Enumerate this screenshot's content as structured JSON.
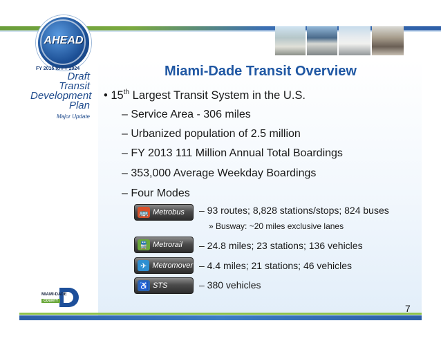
{
  "header": {
    "logo_text": "AHEAD",
    "plan_years": "FY 2015 to FY 2024",
    "plan_title_lines": [
      "Draft",
      "Transit",
      "Development",
      "Plan"
    ],
    "plan_subtitle": "Major Update"
  },
  "slide": {
    "title": "Miami-Dade Transit Overview",
    "bullet_main_prefix": "15",
    "bullet_main_sup": "th",
    "bullet_main_suffix": " Largest Transit System in the U.S.",
    "sub_items": [
      "– Service Area - 306 miles",
      "– Urbanized population of 2.5 million",
      "– FY 2013 111 Million Annual Total Boardings",
      "– 353,000 Average Weekday Boardings",
      "– Four Modes"
    ],
    "modes": [
      {
        "label": "Metrobus",
        "color": "#d9502a",
        "icon": "bus-icon",
        "glyph": "🚌",
        "detail": "– 93 routes; 8,828 stations/stops; 824 buses",
        "note": "» Busway: ~20 miles exclusive lanes"
      },
      {
        "label": "Metrorail",
        "color": "#6aa83a",
        "icon": "train-icon",
        "glyph": "🚆",
        "detail": "– 24.8 miles; 23 stations; 136 vehicles"
      },
      {
        "label": "Metromover",
        "color": "#2e8fd1",
        "icon": "mover-icon",
        "glyph": "✈",
        "detail": "– 4.4 miles; 21 stations; 46 vehicles"
      },
      {
        "label": "STS",
        "color": "#2a63b2",
        "icon": "accessibility-icon",
        "glyph": "♿",
        "detail": "– 380 vehicles"
      }
    ],
    "page_number": "7"
  },
  "footer": {
    "county_line1": "MIAMI-DADE",
    "county_line2": "COUNTY"
  }
}
